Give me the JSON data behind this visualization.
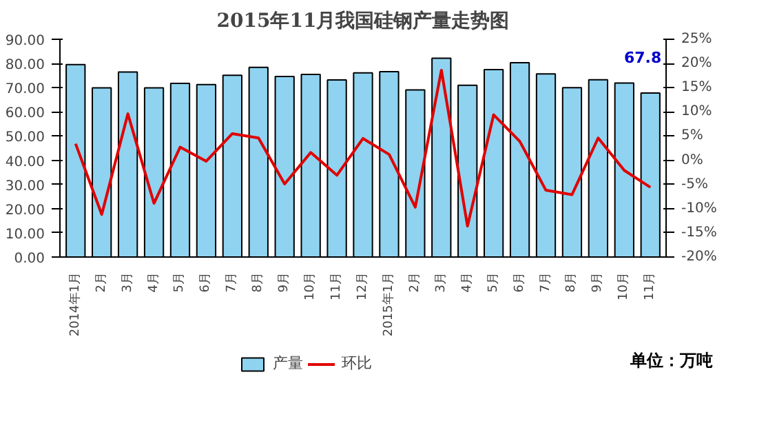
{
  "chart_data": {
    "type": "bar",
    "title": "2015年11月我国硅钢产量走势图",
    "categories": [
      "2014年1月",
      "2月",
      "3月",
      "4月",
      "5月",
      "6月",
      "7月",
      "8月",
      "9月",
      "10月",
      "11月",
      "12月",
      "2015年1月",
      "2月",
      "3月",
      "4月",
      "5月",
      "6月",
      "7月",
      "8月",
      "9月",
      "10月",
      "11月"
    ],
    "series": [
      {
        "name": "产量",
        "color": "#8fd3f0",
        "values": [
          79.5,
          69.9,
          76.5,
          69.9,
          71.8,
          71.3,
          75.1,
          78.4,
          74.6,
          75.5,
          73.2,
          76.1,
          76.6,
          69.1,
          82.2,
          71.0,
          77.5,
          80.3,
          75.7,
          70.0,
          73.3,
          71.9,
          67.8
        ],
        "value_labels": [
          null,
          null,
          null,
          null,
          null,
          null,
          null,
          null,
          null,
          null,
          null,
          null,
          null,
          null,
          null,
          null,
          null,
          null,
          null,
          null,
          null,
          null,
          "67.8"
        ]
      },
      {
        "name": "环比",
        "type": "line",
        "axis": "y2",
        "color": "#e00000",
        "values": [
          3.4,
          -11.2,
          9.6,
          -8.9,
          2.7,
          -0.2,
          5.5,
          4.6,
          -4.9,
          1.6,
          -3.1,
          4.5,
          1.2,
          -9.7,
          18.6,
          -13.6,
          9.4,
          3.9,
          -6.2,
          -7.1,
          4.6,
          -2.1,
          -5.6
        ]
      }
    ],
    "ylim": [
      0,
      90
    ],
    "yticks": [
      {
        "value": 0,
        "label": "0.00"
      },
      {
        "value": 10,
        "label": "10.00"
      },
      {
        "value": 20,
        "label": "20.00"
      },
      {
        "value": 30,
        "label": "30.00"
      },
      {
        "value": 40,
        "label": "40.00"
      },
      {
        "value": 50,
        "label": "50.00"
      },
      {
        "value": 60,
        "label": "60.00"
      },
      {
        "value": 70,
        "label": "70.00"
      },
      {
        "value": 80,
        "label": "80.00"
      },
      {
        "value": 90,
        "label": "90.00"
      }
    ],
    "y2lim": [
      -20,
      25
    ],
    "y2ticks": [
      {
        "value": -20,
        "label": "-20%"
      },
      {
        "value": -15,
        "label": "-15%"
      },
      {
        "value": -10,
        "label": "-10%"
      },
      {
        "value": -5,
        "label": "-5%"
      },
      {
        "value": 0,
        "label": "0%"
      },
      {
        "value": 5,
        "label": "5%"
      },
      {
        "value": 10,
        "label": "10%"
      },
      {
        "value": 15,
        "label": "15%"
      },
      {
        "value": 20,
        "label": "20%"
      },
      {
        "value": 25,
        "label": "25%"
      }
    ],
    "grid": false,
    "legend": "bottom",
    "annotations": [
      "单位：万吨"
    ]
  }
}
